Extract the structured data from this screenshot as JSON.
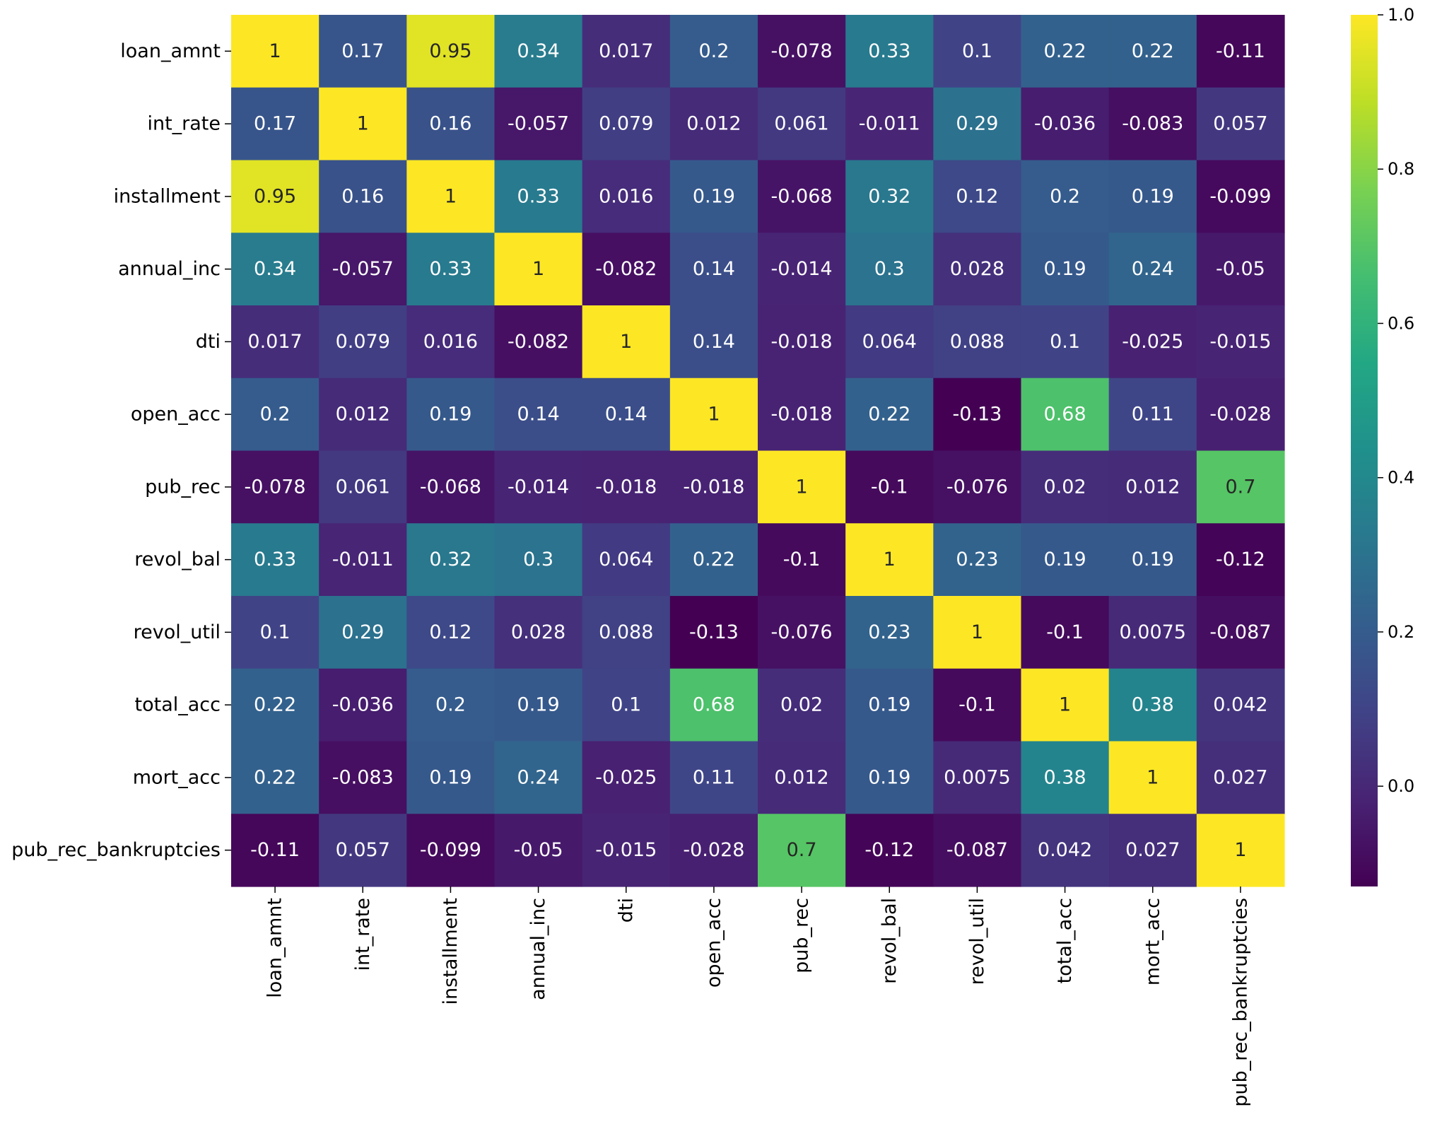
{
  "chart_data": {
    "type": "heatmap",
    "title": "",
    "xlabel": "",
    "ylabel": "",
    "colormap": "viridis",
    "annotated": true,
    "vmin": -0.13,
    "vmax": 1.0,
    "categories": [
      "loan_amnt",
      "int_rate",
      "installment",
      "annual_inc",
      "dti",
      "open_acc",
      "pub_rec",
      "revol_bal",
      "revol_util",
      "total_acc",
      "mort_acc",
      "pub_rec_bankruptcies"
    ],
    "values": [
      [
        1,
        0.17,
        0.95,
        0.34,
        0.017,
        0.2,
        -0.078,
        0.33,
        0.1,
        0.22,
        0.22,
        -0.11
      ],
      [
        0.17,
        1,
        0.16,
        -0.057,
        0.079,
        0.012,
        0.061,
        -0.011,
        0.29,
        -0.036,
        -0.083,
        0.057
      ],
      [
        0.95,
        0.16,
        1,
        0.33,
        0.016,
        0.19,
        -0.068,
        0.32,
        0.12,
        0.2,
        0.19,
        -0.099
      ],
      [
        0.34,
        -0.057,
        0.33,
        1,
        -0.082,
        0.14,
        -0.014,
        0.3,
        0.028,
        0.19,
        0.24,
        -0.05
      ],
      [
        0.017,
        0.079,
        0.016,
        -0.082,
        1,
        0.14,
        -0.018,
        0.064,
        0.088,
        0.1,
        -0.025,
        -0.015
      ],
      [
        0.2,
        0.012,
        0.19,
        0.14,
        0.14,
        1,
        -0.018,
        0.22,
        -0.13,
        0.68,
        0.11,
        -0.028
      ],
      [
        -0.078,
        0.061,
        -0.068,
        -0.014,
        -0.018,
        -0.018,
        1,
        -0.1,
        -0.076,
        0.02,
        0.012,
        0.7
      ],
      [
        0.33,
        -0.011,
        0.32,
        0.3,
        0.064,
        0.22,
        -0.1,
        1,
        0.23,
        0.19,
        0.19,
        -0.12
      ],
      [
        0.1,
        0.29,
        0.12,
        0.028,
        0.088,
        -0.13,
        -0.076,
        0.23,
        1,
        -0.1,
        0.0075,
        -0.087
      ],
      [
        0.22,
        -0.036,
        0.2,
        0.19,
        0.1,
        0.68,
        0.02,
        0.19,
        -0.1,
        1,
        0.38,
        0.042
      ],
      [
        0.22,
        -0.083,
        0.19,
        0.24,
        -0.025,
        0.11,
        0.012,
        0.19,
        0.0075,
        0.38,
        1,
        0.027
      ],
      [
        -0.11,
        0.057,
        -0.099,
        -0.05,
        -0.015,
        -0.028,
        0.7,
        -0.12,
        -0.087,
        0.042,
        0.027,
        1
      ]
    ],
    "colorbar": {
      "ticks": [
        0.0,
        0.2,
        0.4,
        0.6,
        0.8,
        1.0
      ],
      "tick_labels": [
        "0.0",
        "0.2",
        "0.4",
        "0.6",
        "0.8",
        "1.0"
      ]
    }
  }
}
